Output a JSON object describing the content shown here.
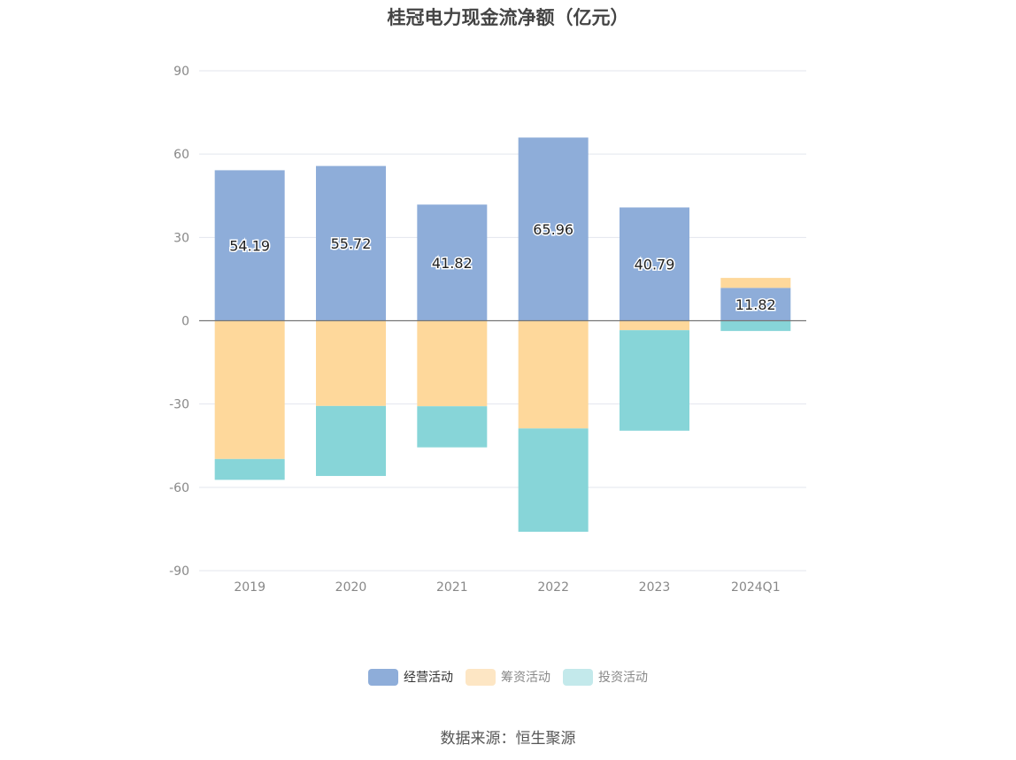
{
  "chart_data": {
    "type": "bar",
    "stacked": true,
    "title": "桂冠电力现金流净额（亿元）",
    "categories": [
      "2019",
      "2020",
      "2021",
      "2022",
      "2023",
      "2024Q1"
    ],
    "series": [
      {
        "name": "经营活动",
        "color": "#8eadd9",
        "values": [
          54.19,
          55.72,
          41.82,
          65.96,
          40.79,
          11.82
        ]
      },
      {
        "name": "筹资活动",
        "color": "#fed89b",
        "values": [
          -49.8,
          -30.7,
          -30.8,
          -38.8,
          -3.4,
          3.6
        ]
      },
      {
        "name": "投资活动",
        "color": "#87d5d8",
        "values": [
          -7.5,
          -25.2,
          -14.8,
          -37.2,
          -36.2,
          -3.7
        ]
      }
    ],
    "data_labels": [
      "54.19",
      "55.72",
      "41.82",
      "65.96",
      "40.79",
      "11.82"
    ],
    "ylim": [
      -90,
      90
    ],
    "yticks": [
      90,
      60,
      30,
      0,
      -30,
      -60,
      -90
    ],
    "grid": true,
    "legend_position": "bottom",
    "xlabel": "",
    "ylabel": ""
  },
  "legend": {
    "items": [
      "经营活动",
      "筹资活动",
      "投资活动"
    ],
    "colors": [
      "#8eadd9",
      "#fde6c4",
      "#c3e9eb"
    ]
  },
  "source": "数据来源：恒生聚源"
}
